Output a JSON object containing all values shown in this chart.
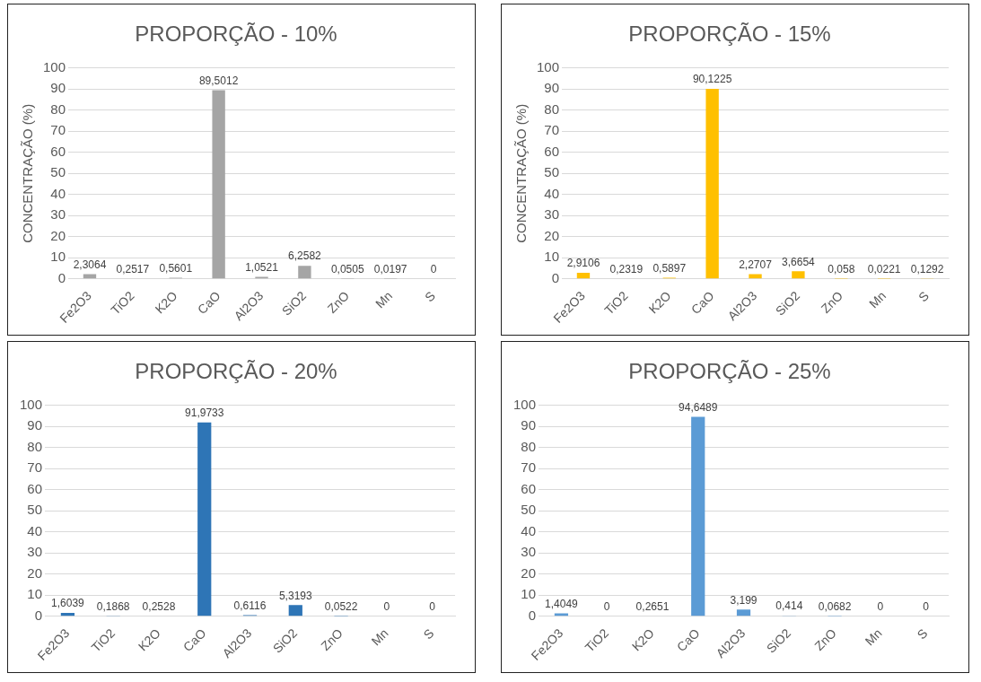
{
  "chart_data": [
    {
      "type": "bar",
      "title": "PROPORÇÃO - 10%",
      "ylabel": "CONCENTRAÇÃO (%)",
      "categories": [
        "Fe2O3",
        "TiO2",
        "K2O",
        "CaO",
        "Al2O3",
        "SiO2",
        "ZnO",
        "Mn",
        "S"
      ],
      "values": [
        2.3064,
        0.2517,
        0.5601,
        89.5012,
        1.0521,
        6.2582,
        0.0505,
        0.0197,
        0
      ],
      "value_labels": [
        "2,3064",
        "0,2517",
        "0,5601",
        "89,5012",
        "1,0521",
        "6,2582",
        "0,0505",
        "0,0197",
        "0"
      ],
      "color": "#a5a5a5",
      "ylim": [
        0,
        100
      ],
      "yticks": [
        0,
        10,
        20,
        30,
        40,
        50,
        60,
        70,
        80,
        90,
        100
      ],
      "grid": "y",
      "legend": false
    },
    {
      "type": "bar",
      "title": "PROPORÇÃO - 15%",
      "ylabel": "CONCENTRAÇÃO (%)",
      "categories": [
        "Fe2O3",
        "TiO2",
        "K2O",
        "CaO",
        "Al2O3",
        "SiO2",
        "ZnO",
        "Mn",
        "S"
      ],
      "values": [
        2.9106,
        0.2319,
        0.5897,
        90.1225,
        2.2707,
        3.6654,
        0.058,
        0.0221,
        0.1292
      ],
      "value_labels": [
        "2,9106",
        "0,2319",
        "0,5897",
        "90,1225",
        "2,2707",
        "3,6654",
        "0,058",
        "0,0221",
        "0,1292"
      ],
      "color": "#ffc000",
      "ylim": [
        0,
        100
      ],
      "yticks": [
        0,
        10,
        20,
        30,
        40,
        50,
        60,
        70,
        80,
        90,
        100
      ],
      "grid": "y",
      "legend": false
    },
    {
      "type": "bar",
      "title": "PROPORÇÃO - 20%",
      "categories": [
        "Fe2O3",
        "TiO2",
        "K2O",
        "CaO",
        "Al2O3",
        "SiO2",
        "ZnO",
        "Mn",
        "S"
      ],
      "values": [
        1.6039,
        0.1868,
        0.2528,
        91.9733,
        0.6116,
        5.3193,
        0.0522,
        0,
        0
      ],
      "value_labels": [
        "1,6039",
        "0,1868",
        "0,2528",
        "91,9733",
        "0,6116",
        "5,3193",
        "0,0522",
        "0",
        "0"
      ],
      "color": "#2e75b6",
      "ylim": [
        0,
        100
      ],
      "yticks": [
        0,
        10,
        20,
        30,
        40,
        50,
        60,
        70,
        80,
        90,
        100
      ],
      "grid": "y",
      "legend": false
    },
    {
      "type": "bar",
      "title": "PROPORÇÃO - 25%",
      "categories": [
        "Fe2O3",
        "TiO2",
        "K2O",
        "CaO",
        "Al2O3",
        "SiO2",
        "ZnO",
        "Mn",
        "S"
      ],
      "values": [
        1.4049,
        0,
        0.2651,
        94.6489,
        3.199,
        0.414,
        0.0682,
        0,
        0
      ],
      "value_labels": [
        "1,4049",
        "0",
        "0,2651",
        "94,6489",
        "3,199",
        "0,414",
        "0,0682",
        "0",
        "0"
      ],
      "color": "#5b9bd5",
      "ylim": [
        0,
        100
      ],
      "yticks": [
        0,
        10,
        20,
        30,
        40,
        50,
        60,
        70,
        80,
        90,
        100
      ],
      "grid": "y",
      "legend": false
    }
  ]
}
